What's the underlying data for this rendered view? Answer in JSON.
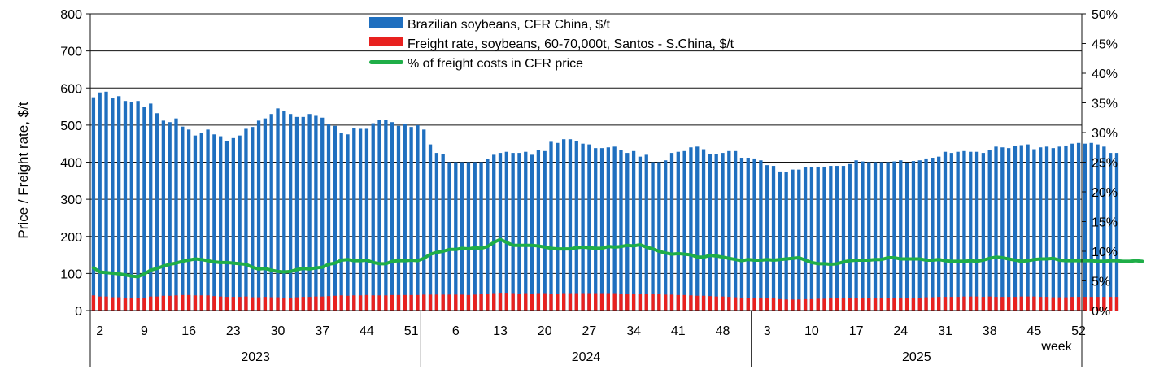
{
  "chart_data": {
    "type": "bar",
    "ylabel": "Price / Freight rate, $/t",
    "xlabel": "week",
    "ylim": [
      0,
      800
    ],
    "y_ticks": [
      0,
      100,
      200,
      300,
      400,
      500,
      600,
      700,
      800
    ],
    "y2lim": [
      0,
      50
    ],
    "y2_ticks": [
      "0%",
      "5%",
      "10%",
      "15%",
      "20%",
      "25%",
      "30%",
      "35%",
      "40%",
      "45%",
      "50%"
    ],
    "grid": true,
    "legend_position": "top",
    "years": [
      {
        "label": "2023",
        "weeks": 52,
        "tick_labels": [
          "2",
          "9",
          "16",
          "23",
          "30",
          "37",
          "44",
          "51"
        ]
      },
      {
        "label": "2024",
        "weeks": 52,
        "tick_labels": [
          "6",
          "13",
          "20",
          "27",
          "34",
          "41",
          "48"
        ]
      },
      {
        "label": "2025",
        "weeks": 52,
        "tick_labels": [
          "3",
          "10",
          "17",
          "24",
          "31",
          "38",
          "45",
          "52"
        ]
      }
    ],
    "series": [
      {
        "name": "Brazilian soybeans, CFR China, $/t",
        "type": "bar",
        "axis": "left",
        "color": "#1f6fbf",
        "values": [
          575,
          588,
          590,
          572,
          578,
          565,
          563,
          565,
          550,
          558,
          532,
          512,
          508,
          518,
          496,
          488,
          472,
          480,
          488,
          475,
          470,
          458,
          465,
          472,
          490,
          495,
          512,
          518,
          530,
          545,
          538,
          530,
          522,
          522,
          530,
          525,
          520,
          503,
          498,
          480,
          475,
          492,
          490,
          490,
          505,
          515,
          515,
          508,
          498,
          502,
          495,
          500,
          488,
          448,
          425,
          422,
          400,
          400,
          400,
          400,
          400,
          400,
          408,
          420,
          425,
          428,
          425,
          425,
          428,
          420,
          432,
          430,
          455,
          452,
          462,
          462,
          458,
          450,
          448,
          438,
          438,
          440,
          442,
          432,
          425,
          430,
          415,
          420,
          400,
          400,
          405,
          425,
          428,
          430,
          440,
          442,
          435,
          422,
          422,
          425,
          430,
          430,
          412,
          412,
          410,
          405,
          392,
          390,
          375,
          373,
          380,
          380,
          387,
          387,
          388,
          388,
          390,
          390,
          390,
          395,
          405,
          402,
          400,
          400,
          400,
          400,
          402,
          405,
          398,
          403,
          405,
          410,
          412,
          415,
          428,
          425,
          428,
          430,
          428,
          428,
          425,
          432,
          442,
          440,
          438,
          443,
          446,
          448,
          435,
          440,
          442,
          438,
          442,
          445,
          450,
          452,
          450,
          452,
          448,
          442,
          425,
          425
        ]
      },
      {
        "name": "Freight rate, soybeans, 60-70,000t, Santos - S.China, $/t",
        "type": "bar",
        "axis": "left",
        "color": "#e8211f",
        "values": [
          41,
          38,
          38,
          36,
          36,
          34,
          33,
          33,
          35,
          38,
          38,
          40,
          40,
          41,
          42,
          42,
          41,
          41,
          41,
          39,
          38,
          37,
          37,
          37,
          38,
          36,
          36,
          37,
          36,
          36,
          35,
          35,
          36,
          37,
          37,
          38,
          38,
          39,
          40,
          41,
          40,
          41,
          41,
          42,
          41,
          41,
          41,
          42,
          42,
          42,
          42,
          42,
          43,
          43,
          43,
          43,
          43,
          43,
          43,
          42,
          43,
          44,
          45,
          47,
          48,
          48,
          47,
          46,
          47,
          46,
          47,
          47,
          46,
          46,
          47,
          47,
          47,
          47,
          47,
          47,
          47,
          47,
          47,
          46,
          46,
          46,
          46,
          46,
          45,
          44,
          43,
          43,
          42,
          42,
          41,
          40,
          40,
          39,
          38,
          38,
          37,
          36,
          35,
          35,
          34,
          34,
          34,
          34,
          31,
          30,
          30,
          30,
          31,
          31,
          32,
          32,
          33,
          33,
          33,
          34,
          35,
          35,
          35,
          35,
          35,
          35,
          35,
          35,
          35,
          35,
          35,
          36,
          36,
          37,
          37,
          37,
          37,
          38,
          38,
          38,
          37,
          38,
          37,
          37,
          37,
          37,
          38,
          38,
          38,
          37,
          37,
          36,
          36,
          36,
          37,
          37,
          37,
          37,
          37,
          37,
          37,
          37
        ]
      },
      {
        "name": "% of freight costs in CFR price",
        "type": "line",
        "axis": "right",
        "color": "#1fae48",
        "values": [
          7.2,
          6.5,
          6.4,
          6.3,
          6.2,
          6.0,
          5.8,
          5.7,
          6.2,
          6.8,
          7.1,
          7.5,
          7.8,
          8.0,
          8.3,
          8.5,
          8.7,
          8.6,
          8.4,
          8.2,
          8.1,
          8.1,
          8.0,
          7.9,
          7.8,
          7.3,
          7.0,
          7.1,
          6.8,
          6.6,
          6.5,
          6.6,
          6.9,
          7.1,
          7.0,
          7.2,
          7.3,
          7.8,
          8.0,
          8.5,
          8.6,
          8.4,
          8.4,
          8.5,
          8.1,
          7.9,
          7.9,
          8.3,
          8.4,
          8.4,
          8.5,
          8.4,
          8.8,
          9.5,
          9.8,
          10.0,
          10.3,
          10.3,
          10.5,
          10.4,
          10.6,
          10.5,
          10.8,
          11.5,
          12.0,
          11.5,
          11.0,
          11.0,
          11.0,
          11.0,
          10.9,
          10.7,
          10.5,
          10.4,
          10.4,
          10.4,
          10.6,
          10.7,
          10.6,
          10.5,
          10.5,
          10.8,
          10.7,
          10.8,
          11.0,
          10.9,
          11.1,
          10.7,
          10.4,
          10.0,
          9.7,
          9.5,
          9.6,
          9.5,
          9.4,
          9.0,
          9.0,
          9.3,
          9.2,
          9.0,
          8.8,
          8.6,
          8.4,
          8.6,
          8.5,
          8.5,
          8.6,
          8.5,
          8.6,
          8.7,
          8.8,
          8.9,
          8.5,
          8.1,
          7.9,
          7.9,
          7.8,
          7.9,
          8.2,
          8.4,
          8.5,
          8.5,
          8.5,
          8.6,
          8.6,
          8.9,
          8.9,
          8.7,
          8.7,
          8.7,
          8.7,
          8.5,
          8.5,
          8.6,
          8.4,
          8.3,
          8.3,
          8.3,
          8.4,
          8.3,
          8.5,
          8.8,
          9.0,
          8.9,
          8.7,
          8.5,
          8.3,
          8.4,
          8.6,
          8.7,
          8.7,
          8.8,
          8.5,
          8.4,
          8.4,
          8.4,
          8.4,
          8.4,
          8.3,
          8.3,
          8.4,
          8.4,
          8.3,
          8.3,
          8.4,
          8.3
        ]
      }
    ]
  }
}
